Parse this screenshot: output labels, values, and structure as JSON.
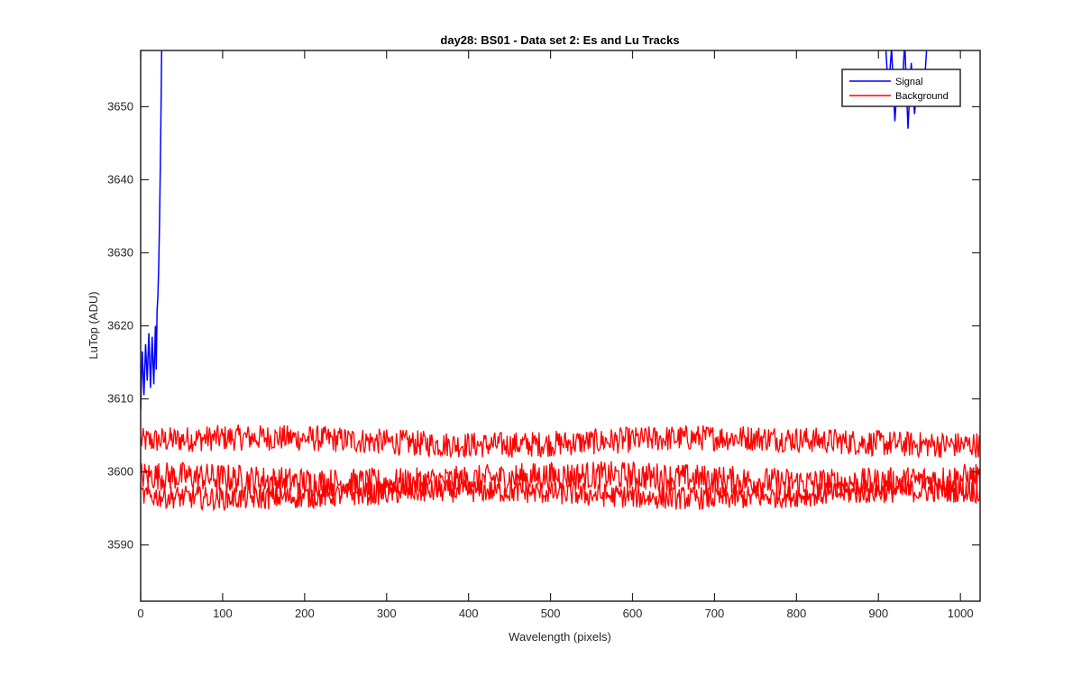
{
  "chart_data": {
    "type": "line",
    "title": "day28: BS01 - Data set 2: Es and Lu Tracks",
    "xlabel": "Wavelength (pixels)",
    "ylabel": "LuTop (ADU)",
    "xlim": [
      0,
      1024
    ],
    "ylim": [
      3582.3,
      3657.7
    ],
    "xticks": [
      0,
      100,
      200,
      300,
      400,
      500,
      600,
      700,
      800,
      900,
      1000
    ],
    "yticks": [
      3590,
      3600,
      3610,
      3620,
      3630,
      3640,
      3650
    ],
    "grid": false,
    "legend_position": "top-right",
    "series": [
      {
        "name": "Signal",
        "color": "#0000ff",
        "segments": [
          {
            "note_visible": "rises steeply from ~3608 at x=0 to beyond the top axis by x~26",
            "x": [
              0,
              2,
              4,
              6,
              8,
              10,
              12,
              14,
              16,
              18,
              19,
              20,
              21,
              22,
              23,
              24,
              25,
              26
            ],
            "y": [
              3608.5,
              3616.5,
              3610.5,
              3617.5,
              3612.5,
              3619,
              3611.5,
              3618.5,
              3612,
              3620,
              3614,
              3622,
              3624,
              3628,
              3634,
              3642,
              3651,
              3662
            ]
          },
          {
            "x": [
              908,
              912,
              916,
              920,
              924,
              928,
              932,
              936,
              940,
              944,
              948,
              952,
              956,
              960
            ],
            "y": [
              3660,
              3652,
              3658,
              3648,
              3655,
              3650,
              3659,
              3647,
              3656,
              3649,
              3654,
              3650.5,
              3653,
              3660
            ]
          }
        ]
      },
      {
        "name": "Background",
        "color": "#ff0000",
        "tracks": [
          {
            "mean": 3604.2,
            "noise_amplitude": 1.8,
            "x_range": [
              0,
              1024
            ]
          },
          {
            "mean": 3599.0,
            "noise_amplitude": 2.0,
            "x_range": [
              0,
              1024
            ]
          },
          {
            "mean": 3596.9,
            "noise_amplitude": 1.6,
            "x_range": [
              0,
              1024
            ]
          }
        ],
        "extremes": {
          "min": 3592.4,
          "max": 3607.8
        }
      }
    ]
  },
  "legend": {
    "entries": [
      {
        "label": "Signal",
        "color": "#0000ff"
      },
      {
        "label": "Background",
        "color": "#ff0000"
      }
    ]
  }
}
